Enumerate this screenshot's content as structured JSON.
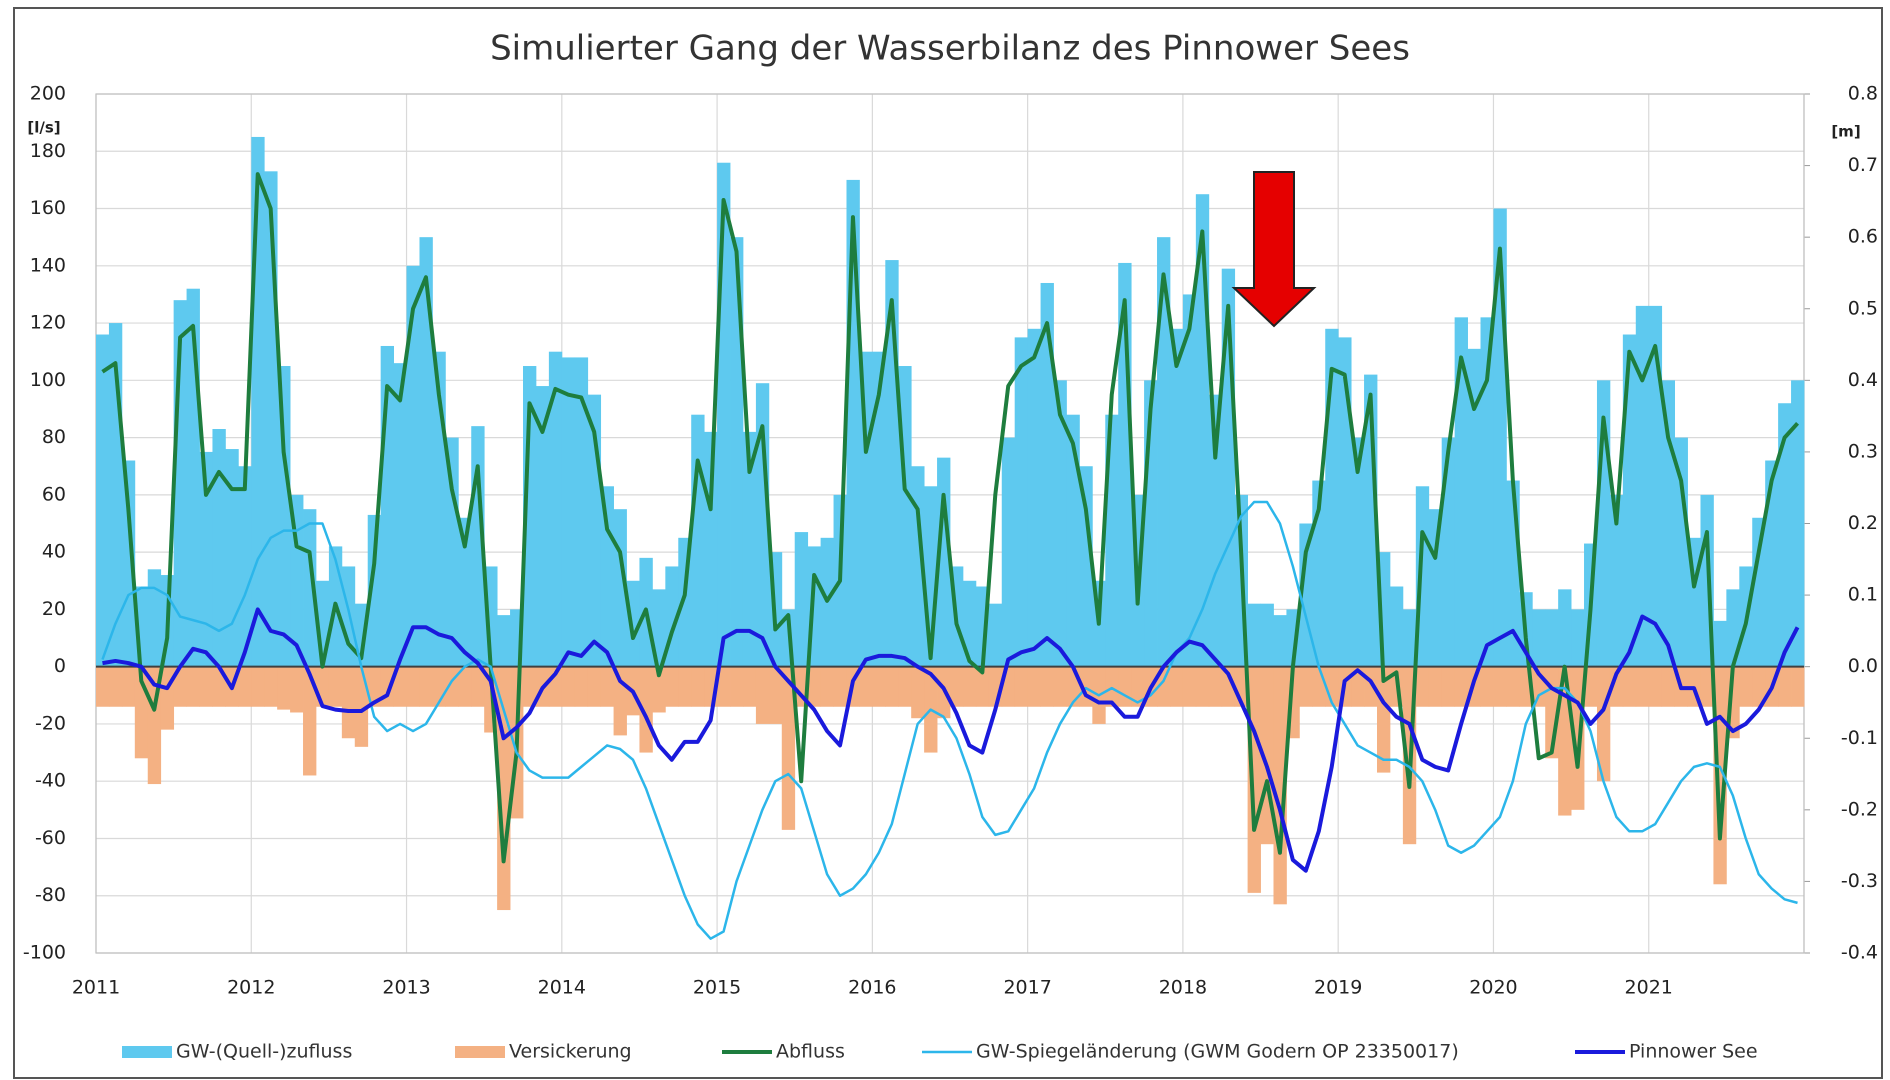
{
  "chart_data": {
    "type": "combo",
    "title": "Simulierter Gang der Wasserbilanz des Pinnower Sees",
    "y_label": "[l/s]",
    "y2_label": "[m]",
    "categories": [
      "2011",
      null,
      null,
      null,
      null,
      null,
      null,
      null,
      null,
      null,
      null,
      null,
      "2012",
      null,
      null,
      null,
      null,
      null,
      null,
      null,
      null,
      null,
      null,
      null,
      "2013",
      null,
      null,
      null,
      null,
      null,
      null,
      null,
      null,
      null,
      null,
      null,
      "2014",
      null,
      null,
      null,
      null,
      null,
      null,
      null,
      null,
      null,
      null,
      null,
      "2015",
      null,
      null,
      null,
      null,
      null,
      null,
      null,
      null,
      null,
      null,
      null,
      "2016",
      null,
      null,
      null,
      null,
      null,
      null,
      null,
      null,
      null,
      null,
      null,
      "2017",
      null,
      null,
      null,
      null,
      null,
      null,
      null,
      null,
      null,
      null,
      null,
      "2018",
      null,
      null,
      null,
      null,
      null,
      null,
      null,
      null,
      null,
      null,
      null,
      "2019",
      null,
      null,
      null,
      null,
      null,
      null,
      null,
      null,
      null,
      null,
      null,
      "2020",
      null,
      null,
      null,
      null,
      null,
      null,
      null,
      null,
      null,
      null,
      null,
      "2021",
      null,
      null,
      null,
      null,
      null,
      null,
      null,
      null,
      null,
      null,
      null
    ],
    "ylim": [
      -100,
      200
    ],
    "yticks": [
      -100,
      -80,
      -60,
      -40,
      -20,
      0,
      20,
      40,
      60,
      80,
      100,
      120,
      140,
      160,
      180,
      200
    ],
    "y2lim": [
      -0.4,
      0.8
    ],
    "y2ticks": [
      -0.4,
      -0.3,
      -0.2,
      -0.1,
      {
        "value": 0,
        "label": "0.0"
      },
      0.1,
      0.2,
      0.3,
      0.4,
      0.5,
      0.6,
      0.7,
      0.8
    ],
    "grid": true,
    "series": [
      {
        "name": "GW-(Quell-)zufluss",
        "kind": "bar",
        "color": "#5ec9ef",
        "values": [
          116,
          120,
          72,
          28,
          34,
          32,
          128,
          132,
          75,
          83,
          76,
          70,
          185,
          173,
          105,
          60,
          55,
          30,
          42,
          35,
          22,
          53,
          112,
          106,
          140,
          150,
          110,
          80,
          52,
          84,
          35,
          18,
          20,
          105,
          98,
          110,
          108,
          108,
          95,
          63,
          55,
          30,
          38,
          27,
          35,
          45,
          88,
          82,
          176,
          150,
          82,
          99,
          40,
          20,
          47,
          42,
          45,
          60,
          170,
          110,
          110,
          142,
          105,
          70,
          63,
          73,
          35,
          30,
          28,
          22,
          80,
          115,
          118,
          134,
          100,
          88,
          70,
          30,
          88,
          141,
          60,
          100,
          150,
          118,
          130,
          165,
          95,
          139,
          60,
          22,
          22,
          18,
          20,
          50,
          65,
          118,
          115,
          80,
          102,
          40,
          28,
          20,
          63,
          55,
          80,
          122,
          111,
          122,
          160,
          65,
          26,
          20,
          20,
          27,
          20,
          43,
          100,
          60,
          116,
          126,
          126,
          100,
          80,
          45,
          60,
          16,
          27,
          35,
          52,
          72,
          92,
          100
        ]
      },
      {
        "name": "Versickerung",
        "kind": "bar",
        "color": "#f4b183",
        "values": [
          -14,
          -14,
          -14,
          -32,
          -41,
          -22,
          -14,
          -14,
          -14,
          -14,
          -14,
          -14,
          -14,
          -14,
          -15,
          -16,
          -38,
          -14,
          -14,
          -25,
          -28,
          -14,
          -14,
          -14,
          -14,
          -14,
          -14,
          -14,
          -14,
          -14,
          -23,
          -85,
          -53,
          -14,
          -14,
          -14,
          -14,
          -14,
          -14,
          -14,
          -24,
          -17,
          -30,
          -16,
          -14,
          -14,
          -14,
          -14,
          -14,
          -14,
          -14,
          -20,
          -20,
          -57,
          -14,
          -14,
          -14,
          -14,
          -14,
          -14,
          -14,
          -14,
          -14,
          -18,
          -30,
          -18,
          -14,
          -14,
          -14,
          -14,
          -14,
          -14,
          -14,
          -14,
          -14,
          -14,
          -14,
          -20,
          -14,
          -14,
          -14,
          -14,
          -14,
          -14,
          -14,
          -14,
          -14,
          -14,
          -14,
          -79,
          -62,
          -83,
          -25,
          -14,
          -14,
          -14,
          -14,
          -14,
          -14,
          -37,
          -14,
          -62,
          -14,
          -14,
          -14,
          -14,
          -14,
          -14,
          -14,
          -14,
          -14,
          -14,
          -32,
          -52,
          -50,
          -14,
          -40,
          -14,
          -14,
          -14,
          -14,
          -14,
          -14,
          -14,
          -14,
          -76,
          -25,
          -14,
          -14,
          -14,
          -14,
          -14
        ]
      },
      {
        "name": "Abfluss",
        "kind": "line",
        "color": "#1e7d3e",
        "width": 4,
        "values": [
          103,
          106,
          55,
          -5,
          -15,
          10,
          115,
          119,
          60,
          68,
          62,
          62,
          172,
          160,
          75,
          42,
          40,
          0,
          22,
          8,
          3,
          36,
          98,
          93,
          125,
          136,
          95,
          62,
          42,
          70,
          0,
          -68,
          -30,
          92,
          82,
          97,
          95,
          94,
          82,
          48,
          40,
          10,
          20,
          -3,
          12,
          25,
          72,
          55,
          163,
          145,
          68,
          84,
          13,
          18,
          -40,
          32,
          23,
          30,
          157,
          75,
          95,
          128,
          62,
          55,
          3,
          60,
          15,
          2,
          -2,
          60,
          98,
          105,
          108,
          120,
          88,
          78,
          55,
          15,
          95,
          128,
          22,
          90,
          137,
          105,
          118,
          152,
          73,
          126,
          40,
          -57,
          -40,
          -65,
          0,
          40,
          55,
          104,
          102,
          68,
          95,
          -5,
          -2,
          -42,
          47,
          38,
          75,
          108,
          90,
          100,
          146,
          65,
          10,
          -32,
          -30,
          0,
          -35,
          20,
          87,
          50,
          110,
          100,
          112,
          80,
          65,
          28,
          47,
          -60,
          0,
          15,
          40,
          65,
          80,
          85
        ]
      },
      {
        "name": "GW-Spiegeländerung (GWM Godern OP 23350017)",
        "kind": "line",
        "axis": "y2",
        "color": "#2cb6ea",
        "width": 2.5,
        "values": [
          0.01,
          0.06,
          0.1,
          0.11,
          0.11,
          0.1,
          0.07,
          0.065,
          0.06,
          0.05,
          0.06,
          0.1,
          0.15,
          0.18,
          0.19,
          0.19,
          0.2,
          0.2,
          0.15,
          0.08,
          0,
          -0.07,
          -0.09,
          -0.08,
          -0.09,
          -0.08,
          -0.05,
          -0.02,
          0,
          0.01,
          0,
          -0.06,
          -0.12,
          -0.145,
          -0.155,
          -0.155,
          -0.155,
          -0.14,
          -0.125,
          -0.11,
          -0.115,
          -0.13,
          -0.17,
          -0.22,
          -0.27,
          -0.32,
          -0.36,
          -0.38,
          -0.37,
          -0.3,
          -0.25,
          -0.2,
          -0.16,
          -0.15,
          -0.17,
          -0.23,
          -0.29,
          -0.32,
          -0.31,
          -0.29,
          -0.26,
          -0.22,
          -0.15,
          -0.08,
          -0.06,
          -0.07,
          -0.1,
          -0.15,
          -0.21,
          -0.235,
          -0.23,
          -0.2,
          -0.17,
          -0.12,
          -0.08,
          -0.05,
          -0.03,
          -0.04,
          -0.03,
          -0.04,
          -0.05,
          -0.04,
          -0.02,
          0.02,
          0.04,
          0.08,
          0.13,
          0.17,
          0.21,
          0.23,
          0.23,
          0.2,
          0.14,
          0.07,
          0,
          -0.05,
          -0.08,
          -0.11,
          -0.12,
          -0.13,
          -0.13,
          -0.14,
          -0.16,
          -0.2,
          -0.25,
          -0.26,
          -0.25,
          -0.23,
          -0.21,
          -0.16,
          -0.08,
          -0.04,
          -0.03,
          -0.03,
          -0.05,
          -0.09,
          -0.16,
          -0.21,
          -0.23,
          -0.23,
          -0.22,
          -0.19,
          -0.16,
          -0.14,
          -0.135,
          -0.14,
          -0.18,
          -0.24,
          -0.29,
          -0.31,
          -0.325,
          -0.33
        ]
      },
      {
        "name": "Pinnower See",
        "kind": "line",
        "axis": "y2",
        "color": "#1a1adc",
        "width": 4,
        "values": [
          0.005,
          0.008,
          0.005,
          0,
          -0.025,
          -0.03,
          0,
          0.025,
          0.02,
          0,
          -0.03,
          0.02,
          0.08,
          0.05,
          0.045,
          0.03,
          -0.01,
          -0.055,
          -0.06,
          -0.062,
          -0.062,
          -0.05,
          -0.04,
          0.01,
          0.055,
          0.055,
          0.045,
          0.04,
          0.02,
          0.005,
          -0.02,
          -0.1,
          -0.085,
          -0.065,
          -0.03,
          -0.01,
          0.02,
          0.015,
          0.035,
          0.02,
          -0.02,
          -0.035,
          -0.07,
          -0.11,
          -0.13,
          -0.105,
          -0.105,
          -0.075,
          0.04,
          0.05,
          0.05,
          0.04,
          0,
          -0.02,
          -0.04,
          -0.06,
          -0.09,
          -0.11,
          -0.02,
          0.01,
          0.015,
          0.015,
          0.012,
          0,
          -0.01,
          -0.03,
          -0.065,
          -0.11,
          -0.12,
          -0.06,
          0.01,
          0.02,
          0.025,
          0.04,
          0.025,
          0,
          -0.04,
          -0.05,
          -0.05,
          -0.07,
          -0.07,
          -0.03,
          0,
          0.02,
          0.035,
          0.03,
          0.01,
          -0.01,
          -0.05,
          -0.09,
          -0.14,
          -0.2,
          -0.27,
          -0.285,
          -0.23,
          -0.14,
          -0.02,
          -0.005,
          -0.02,
          -0.05,
          -0.07,
          -0.08,
          -0.13,
          -0.14,
          -0.145,
          -0.08,
          -0.02,
          0.03,
          0.04,
          0.05,
          0.02,
          -0.01,
          -0.03,
          -0.04,
          -0.05,
          -0.08,
          -0.06,
          -0.01,
          0.02,
          0.07,
          0.06,
          0.03,
          -0.03,
          -0.03,
          -0.08,
          -0.07,
          -0.09,
          -0.08,
          -0.06,
          -0.03,
          0.02,
          0.055
        ]
      }
    ]
  }
}
